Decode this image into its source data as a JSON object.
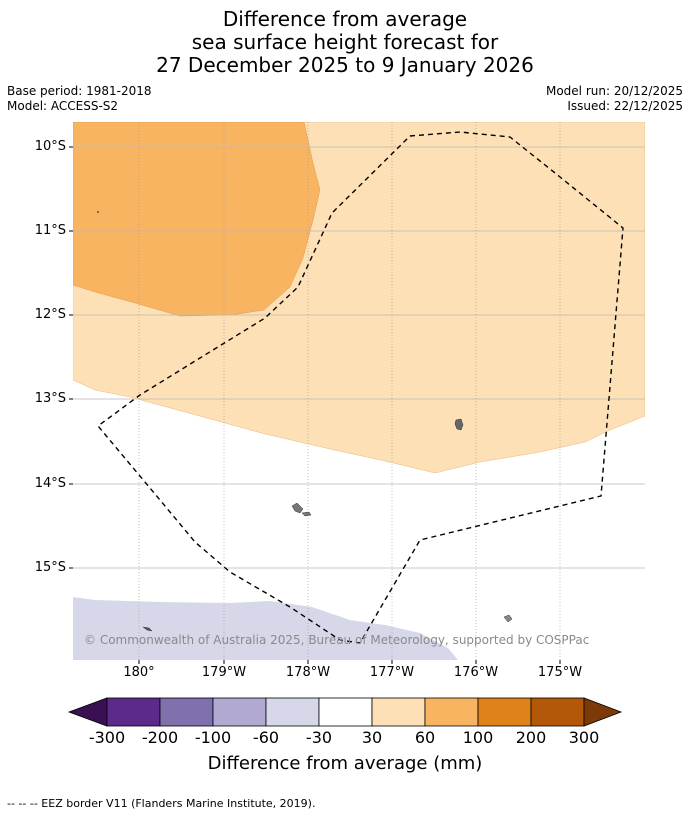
{
  "title": {
    "line1": "Difference from average",
    "line2": "sea surface height forecast for",
    "line3": "27 December 2025 to 9 January 2026"
  },
  "meta": {
    "base_period": "Base period: 1981-2018",
    "model": "Model: ACCESS-S2",
    "model_run": "Model run: 20/12/2025",
    "issued": "Issued: 22/12/2025"
  },
  "map": {
    "lat_labels": [
      "10°S",
      "11°S",
      "12°S",
      "13°S",
      "14°S",
      "15°S"
    ],
    "lon_labels": [
      "180°",
      "179°W",
      "178°W",
      "177°W",
      "176°W",
      "175°W"
    ],
    "credit": "© Commonwealth of Australia 2025, Bureau of Meteorology, supported by COSPPac"
  },
  "colorbar": {
    "labels": [
      "-300",
      "-200",
      "-100",
      "-60",
      "-30",
      "30",
      "60",
      "100",
      "200",
      "300"
    ],
    "colors": [
      "#3b0f54",
      "#5c2a8a",
      "#8070ad",
      "#b1a9d1",
      "#d6d8ea",
      "#ffffff",
      "#fde0b5",
      "#f9b462",
      "#e0821a",
      "#b25808",
      "#7d3a08"
    ],
    "title": "Difference from average (mm)"
  },
  "footer": "--  --  -- EEZ border V11 (Flanders Marine Institute, 2019)."
}
